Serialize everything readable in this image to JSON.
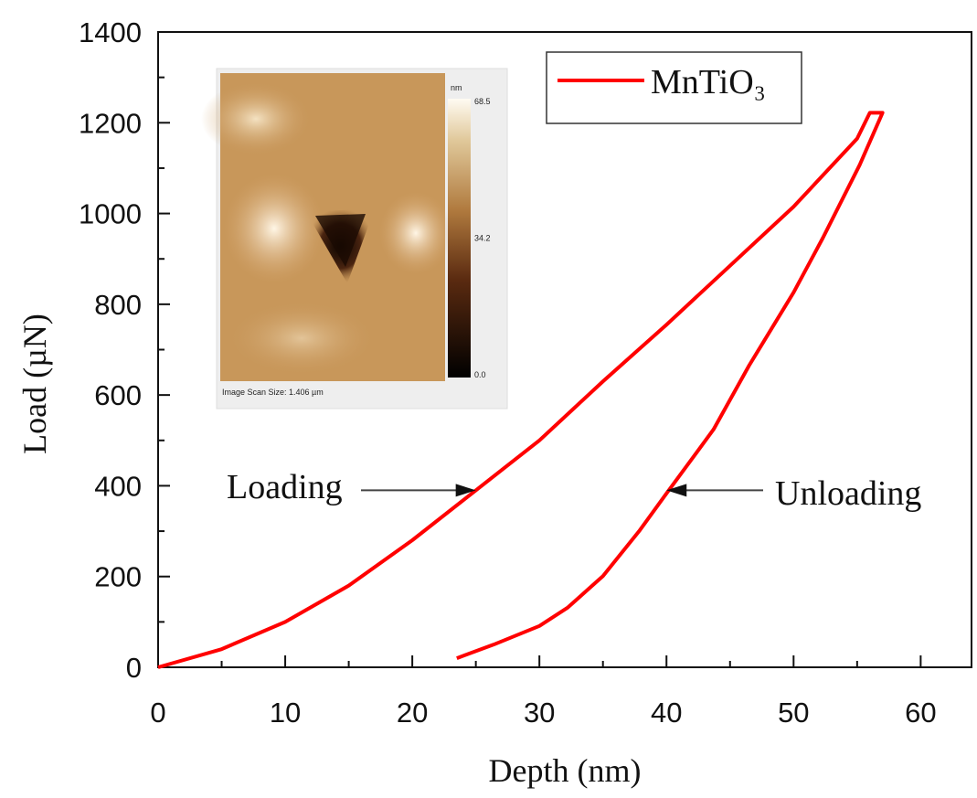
{
  "chart_data": {
    "type": "line",
    "xlabel": "Depth (nm)",
    "ylabel": "Load (µN)",
    "xlim": [
      0,
      64
    ],
    "ylim": [
      0,
      1400
    ],
    "xticks": [
      0,
      10,
      20,
      30,
      40,
      50,
      60
    ],
    "yticks": [
      0,
      200,
      400,
      600,
      800,
      1000,
      1200,
      1400
    ],
    "legend": "upper right",
    "series": [
      {
        "name": "MnTiO₃",
        "color": "#ff0000",
        "x": [
          0,
          5,
          10,
          15,
          20,
          25,
          30,
          35,
          40,
          45,
          50,
          55,
          56,
          57,
          55.2,
          52.3,
          50,
          46.5,
          43.7,
          40,
          37.9,
          35,
          32.2,
          30,
          26.4,
          23.5
        ],
        "values": [
          0,
          40,
          100,
          180,
          280,
          390,
          500,
          630,
          755,
          885,
          1015,
          1165,
          1222,
          1222,
          1107,
          946,
          826,
          665,
          524,
          383,
          302,
          201,
          131,
          91,
          50,
          20
        ]
      }
    ],
    "annotations": [
      {
        "text": "Loading",
        "x": 25,
        "y": 390
      },
      {
        "text": "Unloading",
        "x": 40,
        "y": 390
      }
    ],
    "inset": {
      "colorbar_unit": "nm",
      "colorbar_lim": [
        0,
        68.5
      ],
      "colorbar_ticks": [
        {
          "value": 0,
          "label": "0.0"
        },
        34.2,
        68.5
      ],
      "caption": "Image Scan Size: 1.406 µm"
    }
  }
}
